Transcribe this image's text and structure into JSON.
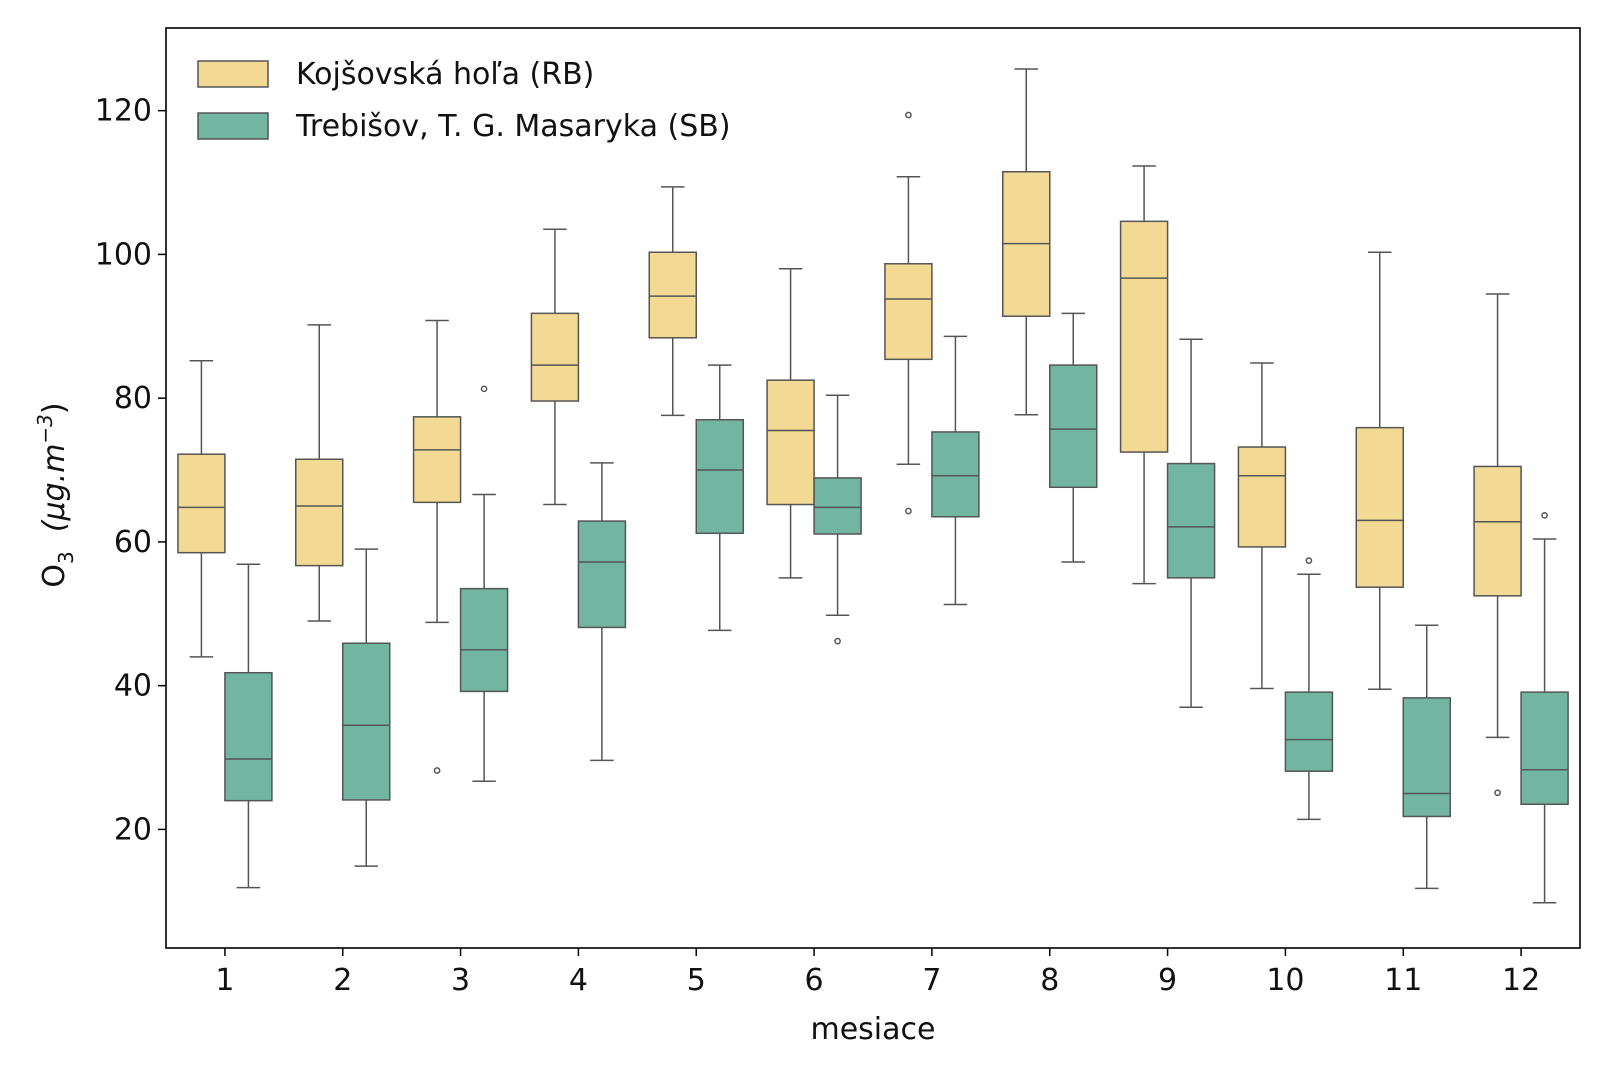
{
  "chart_data": {
    "type": "box",
    "title": "",
    "xlabel": "mesiace",
    "ylabel": {
      "base": "O",
      "sub": "3",
      "unit_prefix": "(μg.m",
      "unit_sup": "−3",
      "unit_suffix": ")"
    },
    "ylim": [
      3.5,
      131.5
    ],
    "yticks": [
      20,
      40,
      60,
      80,
      100,
      120
    ],
    "categories": [
      "1",
      "2",
      "3",
      "4",
      "5",
      "6",
      "7",
      "8",
      "9",
      "10",
      "11",
      "12"
    ],
    "legend_position": "top-left",
    "series": [
      {
        "name": "Kojšovská hoľa (RB)",
        "color": "#f2d994",
        "boxes": [
          {
            "whislo": 44.0,
            "q1": 58.5,
            "med": 64.8,
            "q3": 72.2,
            "whishi": 85.2,
            "fliers": []
          },
          {
            "whislo": 49.0,
            "q1": 56.7,
            "med": 65.0,
            "q3": 71.5,
            "whishi": 90.2,
            "fliers": []
          },
          {
            "whislo": 48.8,
            "q1": 65.5,
            "med": 72.8,
            "q3": 77.4,
            "whishi": 90.8,
            "fliers": [
              28.2
            ]
          },
          {
            "whislo": 65.2,
            "q1": 79.6,
            "med": 84.6,
            "q3": 91.8,
            "whishi": 103.5,
            "fliers": []
          },
          {
            "whislo": 77.6,
            "q1": 88.4,
            "med": 94.2,
            "q3": 100.3,
            "whishi": 109.4,
            "fliers": []
          },
          {
            "whislo": 55.0,
            "q1": 65.2,
            "med": 75.5,
            "q3": 82.5,
            "whishi": 98.0,
            "fliers": []
          },
          {
            "whislo": 70.8,
            "q1": 85.4,
            "med": 93.8,
            "q3": 98.7,
            "whishi": 110.8,
            "fliers": [
              64.3,
              119.4
            ]
          },
          {
            "whislo": 77.7,
            "q1": 91.4,
            "med": 101.5,
            "q3": 111.5,
            "whishi": 125.8,
            "fliers": []
          },
          {
            "whislo": 54.2,
            "q1": 72.5,
            "med": 96.7,
            "q3": 104.6,
            "whishi": 112.3,
            "fliers": []
          },
          {
            "whislo": 39.6,
            "q1": 59.3,
            "med": 69.2,
            "q3": 73.2,
            "whishi": 84.9,
            "fliers": []
          },
          {
            "whislo": 39.5,
            "q1": 53.7,
            "med": 63.0,
            "q3": 75.9,
            "whishi": 100.3,
            "fliers": []
          },
          {
            "whislo": 32.8,
            "q1": 52.5,
            "med": 62.8,
            "q3": 70.5,
            "whishi": 94.5,
            "fliers": [
              25.1
            ]
          }
        ]
      },
      {
        "name": "Trebišov, T. G. Masaryka (SB)",
        "color": "#72b6a1",
        "boxes": [
          {
            "whislo": 11.9,
            "q1": 24.0,
            "med": 29.8,
            "q3": 41.8,
            "whishi": 56.9,
            "fliers": []
          },
          {
            "whislo": 14.9,
            "q1": 24.1,
            "med": 34.5,
            "q3": 45.9,
            "whishi": 59.0,
            "fliers": []
          },
          {
            "whislo": 26.7,
            "q1": 39.2,
            "med": 45.0,
            "q3": 53.5,
            "whishi": 66.6,
            "fliers": [
              81.3
            ]
          },
          {
            "whislo": 29.6,
            "q1": 48.1,
            "med": 57.2,
            "q3": 62.9,
            "whishi": 71.0,
            "fliers": []
          },
          {
            "whislo": 47.7,
            "q1": 61.2,
            "med": 70.0,
            "q3": 77.0,
            "whishi": 84.6,
            "fliers": []
          },
          {
            "whislo": 49.8,
            "q1": 61.1,
            "med": 64.8,
            "q3": 68.9,
            "whishi": 80.4,
            "fliers": [
              46.2
            ]
          },
          {
            "whislo": 51.3,
            "q1": 63.5,
            "med": 69.2,
            "q3": 75.3,
            "whishi": 88.6,
            "fliers": []
          },
          {
            "whislo": 57.2,
            "q1": 67.6,
            "med": 75.7,
            "q3": 84.6,
            "whishi": 91.8,
            "fliers": []
          },
          {
            "whislo": 37.0,
            "q1": 55.0,
            "med": 62.1,
            "q3": 70.9,
            "whishi": 88.2,
            "fliers": []
          },
          {
            "whislo": 21.4,
            "q1": 28.1,
            "med": 32.5,
            "q3": 39.1,
            "whishi": 55.5,
            "fliers": [
              57.4
            ]
          },
          {
            "whislo": 11.8,
            "q1": 21.8,
            "med": 25.0,
            "q3": 38.3,
            "whishi": 48.4,
            "fliers": []
          },
          {
            "whislo": 9.8,
            "q1": 23.5,
            "med": 28.3,
            "q3": 39.1,
            "whishi": 60.4,
            "fliers": [
              63.7
            ]
          }
        ]
      }
    ]
  },
  "colors": {
    "edge": "#555555",
    "axis": "#000000",
    "text": "#111111"
  }
}
